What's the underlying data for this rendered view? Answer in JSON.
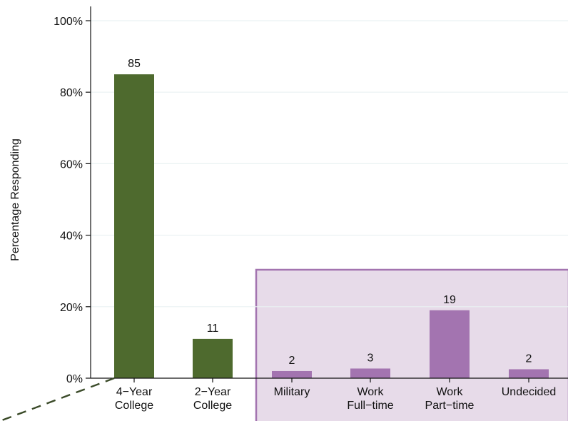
{
  "chart_data": {
    "type": "bar",
    "title": "",
    "xlabel": "",
    "ylabel": "Percentage Responding",
    "ylim": [
      0,
      100
    ],
    "yticks": [
      {
        "value": 0,
        "label": "0%"
      },
      {
        "value": 20,
        "label": "20%"
      },
      {
        "value": 40,
        "label": "40%"
      },
      {
        "value": 60,
        "label": "60%"
      },
      {
        "value": 80,
        "label": "80%"
      },
      {
        "value": 100,
        "label": "100%"
      }
    ],
    "grid": true,
    "categories": [
      [
        "4−Year",
        "College"
      ],
      [
        "2−Year",
        "College"
      ],
      [
        "Military"
      ],
      [
        "Work",
        "Full−time"
      ],
      [
        "Work",
        "Part−time"
      ],
      [
        "Undecided"
      ]
    ],
    "values": [
      85,
      11,
      2,
      3,
      19,
      2
    ],
    "plot_heights": [
      85,
      11,
      2,
      2.7,
      19,
      2.5
    ],
    "data_labels": [
      "85",
      "11",
      "2",
      "3",
      "19",
      "2"
    ],
    "groups": [
      {
        "indices": [
          0,
          1
        ],
        "color": "#4e6a2e"
      },
      {
        "indices": [
          2,
          3,
          4,
          5
        ],
        "color": "#a374b0",
        "highlighted": true,
        "highlight_fill": "#e7dbe9",
        "highlight_border": "#a374b0"
      }
    ]
  }
}
